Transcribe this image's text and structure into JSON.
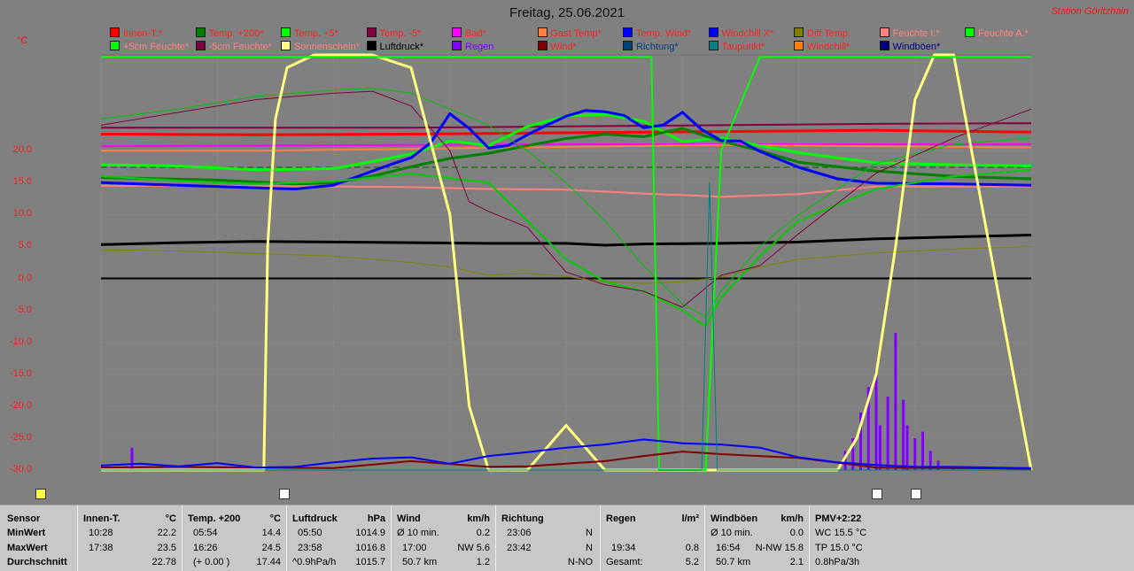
{
  "title": "Freitag, 25.06.2021",
  "station": "Station Göritzhain",
  "unit_label": "°C",
  "legend": [
    {
      "label": "Innen-T.*",
      "color": "#ff0000",
      "text": "#ff2020"
    },
    {
      "label": "Temp. +200*",
      "color": "#008000",
      "text": "#ff2020"
    },
    {
      "label": "Temp. +5*",
      "color": "#00ff00",
      "text": "#ff2020"
    },
    {
      "label": "Temp. -5*",
      "color": "#800040",
      "text": "#ff2020"
    },
    {
      "label": "Bad*",
      "color": "#ff00ff",
      "text": "#ff2020"
    },
    {
      "label": "Gast Temp*",
      "color": "#ff8040",
      "text": "#ff2020"
    },
    {
      "label": "Temp. Wind*",
      "color": "#0000ff",
      "text": "#ff2020"
    },
    {
      "label": "Windchill X*",
      "color": "#0000ff",
      "text": "#ff2020"
    },
    {
      "label": "Diff Temp.",
      "color": "#808000",
      "text": "#ff2020"
    },
    {
      "label": "Feuchte I.*",
      "color": "#ff8080",
      "text": "#ff8080"
    },
    {
      "label": "Feuchte A.*",
      "color": "#00ff00",
      "text": "#ff8080"
    },
    {
      "label": "+5cm Feuchte*",
      "color": "#00ff00",
      "text": "#ff8080"
    },
    {
      "label": "-5cm Feuchte*",
      "color": "#800040",
      "text": "#ff8080"
    },
    {
      "label": "Sonnenschein*",
      "color": "#ffff80",
      "text": "#ff8080"
    },
    {
      "label": "Luftdruck*",
      "color": "#000000",
      "text": "#000000"
    },
    {
      "label": "Regen",
      "color": "#8000ff",
      "text": "#8000ff"
    },
    {
      "label": "Wind*",
      "color": "#800000",
      "text": "#ff2020"
    },
    {
      "label": "Richtung*",
      "color": "#004080",
      "text": "#004080"
    },
    {
      "label": "Taupunkt*",
      "color": "#008080",
      "text": "#ff2020"
    },
    {
      "label": "Windchill*",
      "color": "#ff8000",
      "text": "#ff2020"
    },
    {
      "label": "Windböen*",
      "color": "#000080",
      "text": "#000080"
    }
  ],
  "chart_data": {
    "type": "line",
    "title": "Freitag, 25.06.2021",
    "ylabel": "°C",
    "ylim": [
      -30,
      35
    ],
    "xlim": [
      0,
      24
    ],
    "yticks": [
      {
        "v": 20,
        "label": "20.0"
      },
      {
        "v": 15,
        "label": "15.0"
      },
      {
        "v": 10,
        "label": "10.0"
      },
      {
        "v": 5,
        "label": "5.0"
      },
      {
        "v": 0,
        "label": "0.0"
      },
      {
        "v": -5,
        "label": "-5.0"
      },
      {
        "v": -10,
        "label": "-10.0"
      },
      {
        "v": -15,
        "label": "-15.0"
      },
      {
        "v": -20,
        "label": "-20.0"
      },
      {
        "v": -25,
        "label": "-25.0"
      },
      {
        "v": -30,
        "label": "-30.0"
      }
    ],
    "grid": true,
    "legend_position": "top",
    "series": [
      {
        "name": "Innen-T.*",
        "color": "#ff0000",
        "width": 3,
        "x": [
          0,
          4,
          8,
          12,
          16,
          20,
          24
        ],
        "y": [
          22.6,
          22.5,
          22.6,
          22.8,
          23.0,
          23.2,
          22.9
        ]
      },
      {
        "name": "Temp. -5*",
        "color": "#800040",
        "width": 2,
        "x": [
          0,
          4,
          8,
          12,
          16,
          20,
          24
        ],
        "y": [
          23.6,
          23.6,
          23.6,
          23.8,
          24.0,
          24.2,
          24.3
        ]
      },
      {
        "name": "Bad*",
        "color": "#ff00ff",
        "width": 2,
        "x": [
          0,
          4,
          8,
          12,
          16,
          20,
          24
        ],
        "y": [
          20.7,
          20.8,
          20.9,
          21.0,
          21.0,
          21.0,
          21.0
        ]
      },
      {
        "name": "Gast Temp*",
        "color": "#ff8040",
        "width": 2,
        "x": [
          0,
          4,
          8,
          12,
          16,
          20,
          24
        ],
        "y": [
          20.0,
          20.0,
          20.3,
          20.6,
          20.9,
          20.7,
          20.5
        ]
      },
      {
        "name": "Feuchte I.*",
        "color": "#ff8080",
        "width": 2,
        "x": [
          0,
          3,
          6,
          8,
          10,
          12,
          14,
          16,
          18,
          20,
          24
        ],
        "y": [
          14.5,
          14.5,
          14.4,
          14.3,
          14.0,
          13.9,
          13.3,
          12.8,
          13.2,
          14.4,
          14.4
        ]
      },
      {
        "name": "Temp. +5*",
        "color": "#00ff00",
        "width": 3,
        "x": [
          0,
          2,
          4,
          6,
          7,
          8,
          9,
          10,
          11,
          12,
          13,
          14,
          15,
          16,
          17,
          18,
          19,
          20,
          22,
          24
        ],
        "y": [
          17.8,
          17.6,
          17.0,
          17.2,
          18.3,
          19.5,
          21.5,
          20.8,
          23.8,
          25.4,
          25.7,
          24.6,
          21.4,
          22.0,
          20.8,
          19.7,
          18.9,
          18.1,
          17.8,
          17.6
        ]
      },
      {
        "name": "Temp. +200*",
        "color": "#008000",
        "width": 3,
        "x": [
          0,
          3,
          5,
          6,
          7,
          8,
          9,
          10,
          11,
          12,
          13,
          14,
          15,
          16,
          17,
          18,
          20,
          22,
          24
        ],
        "y": [
          15.8,
          15.4,
          14.8,
          15.0,
          16.0,
          17.5,
          18.8,
          19.6,
          20.8,
          21.9,
          22.6,
          22.2,
          23.5,
          21.5,
          20.0,
          18.2,
          16.8,
          16.0,
          15.6
        ]
      },
      {
        "name": "Temp. Wind*",
        "color": "#0000ff",
        "width": 3,
        "x": [
          0,
          2,
          4,
          5,
          6,
          7,
          7.5,
          8,
          8.5,
          9,
          9.5,
          10,
          10.5,
          11,
          11.5,
          12,
          12.5,
          13,
          13.5,
          14,
          14.5,
          15,
          15.5,
          16,
          16.5,
          17,
          18,
          19,
          20,
          22,
          24
        ],
        "y": [
          15.0,
          14.6,
          14.2,
          14.0,
          14.6,
          16.8,
          17.9,
          18.9,
          21.2,
          25.8,
          23.5,
          20.4,
          20.8,
          22.5,
          24.0,
          25.4,
          26.3,
          26.1,
          25.5,
          23.6,
          24.0,
          26.0,
          23.3,
          21.6,
          21.5,
          19.9,
          17.4,
          15.6,
          14.9,
          14.8,
          14.6
        ]
      },
      {
        "name": "Luftdruck*",
        "color": "#000000",
        "width": 3,
        "x": [
          0,
          2,
          4,
          6,
          8,
          10,
          12,
          13,
          14,
          16,
          18,
          20,
          22,
          24
        ],
        "y": [
          5.3,
          5.6,
          5.8,
          5.7,
          5.6,
          5.5,
          5.5,
          5.2,
          5.4,
          5.5,
          5.7,
          6.2,
          6.5,
          6.8
        ]
      },
      {
        "name": "Diff Temp.",
        "color": "#808000",
        "width": 1,
        "x": [
          0,
          2,
          4,
          6,
          8,
          9,
          10,
          11,
          12,
          13,
          14,
          15,
          16,
          17,
          18,
          20,
          22,
          24
        ],
        "y": [
          4.5,
          4.3,
          3.9,
          3.5,
          2.5,
          1.8,
          0.5,
          0.8,
          0.3,
          -0.5,
          -0.8,
          -0.5,
          0.2,
          1.8,
          3.0,
          4.0,
          4.6,
          5.0
        ]
      },
      {
        "name": "Windchill X*",
        "color": "#00cc00",
        "width": 2,
        "x": [
          0,
          2,
          4,
          6,
          8,
          10,
          11,
          12,
          13,
          14,
          15,
          15.6,
          16,
          17,
          18,
          20,
          22,
          24
        ],
        "y": [
          16.0,
          15.3,
          14.8,
          15.2,
          16.4,
          15.0,
          9.0,
          3.0,
          -0.5,
          -2.0,
          -5.0,
          -7.5,
          -3.0,
          3.5,
          9.0,
          14.0,
          16.0,
          17.0
        ]
      },
      {
        "name": "+5cm Feuchte*",
        "color": "#00c000",
        "width": 1,
        "x": [
          0,
          2,
          4,
          6,
          7,
          8,
          10,
          11,
          12,
          13,
          14,
          15,
          15.6,
          16,
          17,
          18,
          20,
          22,
          24
        ],
        "y": [
          25.0,
          26.5,
          28.5,
          29.5,
          29.8,
          29.0,
          24.0,
          20.0,
          15.0,
          9.0,
          2.0,
          -4.0,
          -6.0,
          -2.0,
          5.0,
          10.0,
          18.0,
          21.0,
          22.0
        ]
      },
      {
        "name": "-5cm Feuchte*",
        "color": "#800040",
        "width": 1,
        "x": [
          0,
          2,
          4,
          6,
          7,
          8,
          9,
          9.5,
          10,
          11,
          12,
          13,
          14,
          15,
          16,
          17,
          18,
          20,
          22,
          24
        ],
        "y": [
          24.0,
          26.0,
          28.0,
          29.0,
          29.3,
          27.0,
          20.0,
          12.0,
          10.5,
          8.0,
          1.0,
          -1.0,
          -2.0,
          -4.5,
          0.5,
          2.0,
          7.0,
          16.5,
          22.0,
          26.5
        ]
      },
      {
        "name": "Sonnenschein*",
        "color": "#ffff80",
        "width": 3,
        "x": [
          0,
          4.2,
          4.3,
          4.5,
          4.8,
          5.5,
          6,
          6.5,
          7,
          8,
          9,
          9.5,
          10,
          11,
          12,
          13,
          13.5,
          14,
          14.5,
          15,
          15.5,
          16,
          17,
          18,
          19,
          19.5,
          20,
          20.5,
          21,
          21.5,
          22,
          24
        ],
        "y": [
          -30,
          -30,
          5.0,
          25.0,
          33.0,
          35.0,
          35.0,
          35.0,
          35.0,
          33.0,
          10.0,
          -20.0,
          -30.0,
          -30.0,
          -23.0,
          -30.0,
          -30.0,
          -30.0,
          -30.0,
          -30.0,
          -30.0,
          -30.0,
          -30.0,
          -30.0,
          -30.0,
          -25.0,
          -15.0,
          5.0,
          28.0,
          35.0,
          35.0,
          -30.0
        ]
      },
      {
        "name": "Feuchte A.*",
        "color": "#00ff00",
        "width": 2,
        "x": [
          0,
          11,
          13,
          14,
          14.2,
          14.4,
          15.6,
          16,
          17,
          18,
          19,
          20,
          22,
          24
        ],
        "y": [
          34.7,
          34.7,
          34.7,
          34.7,
          34.7,
          -30.0,
          -30.0,
          20.0,
          34.7,
          34.7,
          34.7,
          34.7,
          34.7,
          34.7
        ]
      },
      {
        "name": "Wind*",
        "color": "#800000",
        "width": 2,
        "x": [
          0,
          2,
          4,
          6,
          8,
          10,
          11,
          12,
          13,
          14,
          15,
          16,
          18,
          20,
          22,
          24
        ],
        "y": [
          -29.6,
          -29.5,
          -29.6,
          -29.7,
          -28.6,
          -29.5,
          -29.4,
          -29.0,
          -28.6,
          -27.8,
          -27.1,
          -27.5,
          -28.1,
          -29.6,
          -29.7,
          -29.8
        ]
      },
      {
        "name": "Windböen*",
        "color": "#0000ff",
        "width": 2,
        "x": [
          0,
          1,
          2,
          3,
          4,
          5,
          6,
          7,
          8,
          9,
          10,
          11,
          12,
          13,
          14,
          15,
          16,
          17,
          18,
          19,
          20,
          21,
          22,
          23,
          24
        ],
        "y": [
          -29.3,
          -29.0,
          -29.4,
          -28.9,
          -29.6,
          -29.5,
          -28.8,
          -28.2,
          -28.0,
          -29.0,
          -27.8,
          -27.2,
          -26.5,
          -26.0,
          -25.2,
          -25.8,
          -26.0,
          -26.5,
          -28.0,
          -28.8,
          -29.2,
          -29.5,
          -29.5,
          -29.6,
          -29.7
        ]
      },
      {
        "name": "Taupunkt*",
        "color": "#008080",
        "width": 1,
        "x": [
          0,
          12,
          15.5,
          15.7,
          15.9,
          24
        ],
        "y": [
          -30,
          -30,
          -30,
          15.0,
          -30,
          -30
        ]
      }
    ],
    "reference_lines": [
      {
        "y": 17.4,
        "color": "#006000",
        "dash": "7,4"
      }
    ],
    "bars": {
      "name": "Regen",
      "color": "#8000ff",
      "x": [
        0.8,
        19.2,
        19.4,
        19.6,
        19.8,
        20.0,
        20.1,
        20.3,
        20.5,
        20.7,
        20.8,
        21.0,
        21.2,
        21.4,
        21.6,
        22.0
      ],
      "y": [
        -26.5,
        -27.0,
        -25.0,
        -21.0,
        -17.0,
        -14.5,
        -23.0,
        -18.5,
        -8.5,
        -19.0,
        -23.0,
        -25.0,
        -24.0,
        -27.0,
        -28.5,
        -29.5
      ]
    }
  },
  "markers": [
    {
      "name": "sun-marker",
      "color": "#ffff40",
      "x": 0.0
    },
    {
      "name": "moon-marker",
      "color": "#ffffff",
      "x": 4.7
    },
    {
      "name": "white-marker",
      "color": "#ffffff",
      "x": 20.0
    },
    {
      "name": "moon-marker-2",
      "color": "#ffffff",
      "x": 21.0
    }
  ],
  "table": {
    "sensor": {
      "h": "Sensor",
      "r1": "MinWert",
      "r2": "MaxWert",
      "r3": "Durchschnitt"
    },
    "innen": {
      "h": "Innen-T.",
      "u": "°C",
      "r1a": "10:28",
      "r1b": "22.2",
      "r2a": "17:38",
      "r2b": "23.5",
      "r3b": "22.78"
    },
    "temp200": {
      "h": "Temp. +200",
      "u": "°C",
      "r1a": "05:54",
      "r1b": "14.4",
      "r2a": "16:26",
      "r2b": "24.5",
      "r3a": "(+ 0.00 )",
      "r3b": "17.44"
    },
    "luftdruck": {
      "h": "Luftdruck",
      "u": "hPa",
      "r1a": "05:50",
      "r1b": "1014.9",
      "r2a": "23:58",
      "r2b": "1016.8",
      "r3a": "^0.9hPa/h",
      "r3b": "1015.7"
    },
    "wind": {
      "h": "Wind",
      "u": "km/h",
      "r1a": "Ø 10 min.",
      "r1b": "0.2",
      "r2a": "17:00",
      "r2b": "NW 5.6",
      "r3a": "50.7 km",
      "r3b": "1.2"
    },
    "richtung": {
      "h": "Richtung",
      "r1a": "23:06",
      "r1b": "N",
      "r2a": "23:42",
      "r2b": "N",
      "r3b": "N-NO"
    },
    "regen": {
      "h": "Regen",
      "u": "l/m²",
      "r2a": "19:34",
      "r2b": "0.8",
      "r3a": "Gesamt:",
      "r3b": "5.2"
    },
    "windboeen": {
      "h": "Windböen",
      "u": "km/h",
      "r1a": "Ø 10 min.",
      "r1b": "0.0",
      "r2a": "16:54",
      "r2b": "N-NW 15.8",
      "r3a": "50.7 km",
      "r3b": "2.1"
    },
    "pmv": {
      "h": "PMV+2:22",
      "r1": "WC 15.5 °C",
      "r2": "TP 15.0 °C",
      "r3": "0.8hPa/3h"
    }
  }
}
